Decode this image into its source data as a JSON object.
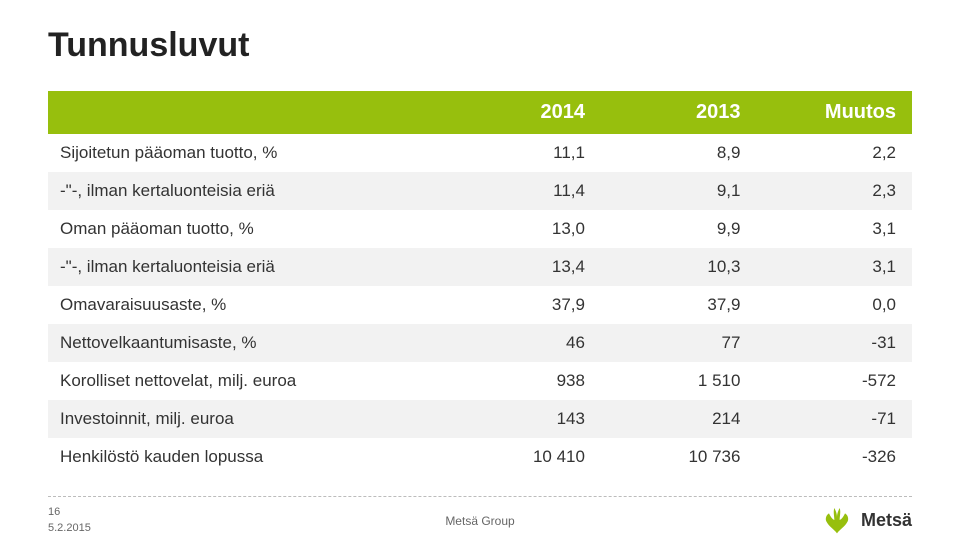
{
  "title": "Tunnusluvut",
  "accent_color": "#97bf0d",
  "shade_color": "#f2f2f2",
  "text_color": "#333333",
  "header": {
    "blank": "",
    "c1": "2014",
    "c2": "2013",
    "c3": "Muutos"
  },
  "rows": [
    {
      "label": "Sijoitetun pääoman tuotto, %",
      "c1": "11,1",
      "c2": "8,9",
      "c3": "2,2",
      "shade": false
    },
    {
      "label": "-\"-, ilman kertaluonteisia eriä",
      "c1": "11,4",
      "c2": "9,1",
      "c3": "2,3",
      "shade": true
    },
    {
      "label": "Oman pääoman tuotto, %",
      "c1": "13,0",
      "c2": "9,9",
      "c3": "3,1",
      "shade": false
    },
    {
      "label": "-\"-, ilman kertaluonteisia eriä",
      "c1": "13,4",
      "c2": "10,3",
      "c3": "3,1",
      "shade": true
    },
    {
      "label": "Omavaraisuusaste, %",
      "c1": "37,9",
      "c2": "37,9",
      "c3": "0,0",
      "shade": false
    },
    {
      "label": "Nettovelkaantumisaste, %",
      "c1": "46",
      "c2": "77",
      "c3": "-31",
      "shade": true
    },
    {
      "label": "Korolliset nettovelat, milj. euroa",
      "c1": "938",
      "c2": "1 510",
      "c3": "-572",
      "shade": false
    },
    {
      "label": "Investoinnit, milj. euroa",
      "c1": "143",
      "c2": "214",
      "c3": "-71",
      "shade": true
    },
    {
      "label": "Henkilöstö kauden lopussa",
      "c1": "10 410",
      "c2": "10 736",
      "c3": "-326",
      "shade": false
    }
  ],
  "footer": {
    "page": "16",
    "date": "5.2.2015",
    "group": "Metsä Group",
    "brand": "Metsä"
  },
  "table_style": {
    "header_fontsize": 20,
    "body_fontsize": 17
  }
}
